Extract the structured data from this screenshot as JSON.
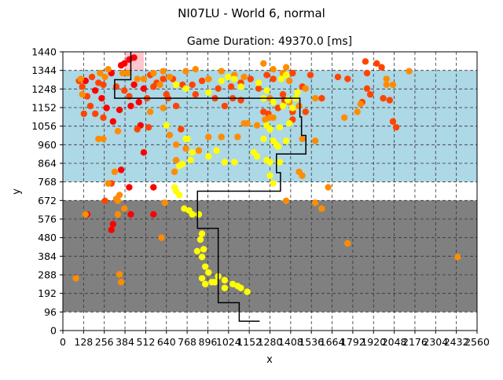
{
  "chart_data": {
    "type": "scatter",
    "suptitle": "NI07LU - World 6, normal",
    "title": "Game Duration: 49370.0 [ms]",
    "xlabel": "x",
    "ylabel": "y",
    "xlim": [
      0,
      2560
    ],
    "ylim": [
      0,
      1440
    ],
    "xticks": [
      0,
      128,
      256,
      384,
      512,
      640,
      768,
      896,
      1024,
      1152,
      1280,
      1408,
      1536,
      1664,
      1792,
      1920,
      2048,
      2176,
      2304,
      2432,
      2560
    ],
    "yticks": [
      0,
      96,
      192,
      288,
      384,
      480,
      576,
      672,
      768,
      864,
      960,
      1056,
      1152,
      1248,
      1344,
      1440
    ],
    "xtick_labels": [
      "0",
      "128",
      "256",
      "384",
      "512",
      "640",
      "768",
      "896",
      "1024",
      "1152",
      "1280",
      "1408",
      "1536",
      "1664",
      "1792",
      "1920",
      "2048",
      "2176",
      "2304",
      "2432",
      "2560"
    ],
    "ytick_labels": [
      "0",
      "96",
      "192",
      "288",
      "384",
      "480",
      "576",
      "672",
      "768",
      "864",
      "960",
      "1056",
      "1152",
      "1248",
      "1344",
      "1440"
    ],
    "grid": true,
    "regions": [
      {
        "name": "sky",
        "y_range": [
          768,
          1344
        ],
        "color": "#add8e6"
      },
      {
        "name": "ground",
        "y_range": [
          96,
          672
        ],
        "color": "#808080"
      }
    ],
    "colors": {
      "red": "#ff0000",
      "orange_red": "#ff4500",
      "orange": "#ff8c00",
      "yellow": "#ffff00",
      "path": "#000000",
      "highlight": "#ffb6c1"
    },
    "path": [
      [
        1216,
        48
      ],
      [
        1090,
        48
      ],
      [
        1090,
        144
      ],
      [
        960,
        144
      ],
      [
        960,
        528
      ],
      [
        832,
        528
      ],
      [
        832,
        720
      ],
      [
        1345,
        720
      ],
      [
        1345,
        816
      ],
      [
        1320,
        816
      ],
      [
        1320,
        912
      ],
      [
        1502,
        912
      ],
      [
        1502,
        1008
      ],
      [
        1475,
        1008
      ],
      [
        1475,
        1104
      ],
      [
        1465,
        1104
      ],
      [
        1465,
        1200
      ],
      [
        320,
        1200
      ],
      [
        320,
        1296
      ],
      [
        420,
        1296
      ],
      [
        420,
        1440
      ]
    ],
    "series": [
      {
        "color": "#ff0000",
        "points": [
          [
            410,
            1400
          ],
          [
            380,
            1380
          ],
          [
            440,
            1410
          ],
          [
            360,
            1370
          ],
          [
            300,
            1330
          ],
          [
            500,
            1250
          ],
          [
            470,
            1180
          ],
          [
            420,
            1160
          ],
          [
            350,
            1140
          ],
          [
            480,
            1060
          ],
          [
            310,
            1080
          ],
          [
            500,
            920
          ],
          [
            360,
            830
          ],
          [
            410,
            740
          ],
          [
            560,
            740
          ],
          [
            560,
            600
          ],
          [
            310,
            550
          ],
          [
            300,
            520
          ],
          [
            420,
            600
          ],
          [
            140,
            1290
          ],
          [
            200,
            1240
          ],
          [
            240,
            1200
          ],
          [
            270,
            1150
          ],
          [
            440,
            1270
          ],
          [
            150,
            600
          ]
        ]
      },
      {
        "color": "#ff4500",
        "points": [
          [
            100,
            1290
          ],
          [
            120,
            1260
          ],
          [
            180,
            1310
          ],
          [
            220,
            1280
          ],
          [
            150,
            1210
          ],
          [
            170,
            1160
          ],
          [
            130,
            1120
          ],
          [
            200,
            1120
          ],
          [
            250,
            1100
          ],
          [
            330,
            1260
          ],
          [
            380,
            1240
          ],
          [
            540,
            1320
          ],
          [
            580,
            1280
          ],
          [
            620,
            1300
          ],
          [
            680,
            1300
          ],
          [
            740,
            1270
          ],
          [
            800,
            1270
          ],
          [
            860,
            1290
          ],
          [
            960,
            1250
          ],
          [
            1040,
            1260
          ],
          [
            1100,
            1280
          ],
          [
            1160,
            1300
          ],
          [
            1210,
            1250
          ],
          [
            1260,
            1320
          ],
          [
            1300,
            1300
          ],
          [
            1420,
            1330
          ],
          [
            1480,
            1260
          ],
          [
            1530,
            1320
          ],
          [
            1600,
            1200
          ],
          [
            1700,
            1310
          ],
          [
            1760,
            1300
          ],
          [
            1880,
            1330
          ],
          [
            1940,
            1380
          ],
          [
            1970,
            1360
          ],
          [
            1880,
            1250
          ],
          [
            1850,
            1180
          ],
          [
            1900,
            1220
          ],
          [
            1980,
            1200
          ],
          [
            2020,
            1190
          ],
          [
            2040,
            1080
          ],
          [
            2060,
            1050
          ],
          [
            1870,
            1390
          ],
          [
            1500,
            1130
          ],
          [
            1420,
            1090
          ],
          [
            1270,
            1120
          ],
          [
            1240,
            1130
          ],
          [
            1330,
            1150
          ],
          [
            1370,
            1190
          ],
          [
            1360,
            1220
          ],
          [
            1420,
            1130
          ],
          [
            1100,
            1190
          ],
          [
            1050,
            1200
          ],
          [
            1000,
            1160
          ],
          [
            940,
            1200
          ],
          [
            820,
            1220
          ],
          [
            700,
            1160
          ],
          [
            730,
            1040
          ],
          [
            650,
            1200
          ],
          [
            640,
            1220
          ],
          [
            560,
            1260
          ],
          [
            520,
            1200
          ],
          [
            460,
            1040
          ],
          [
            530,
            1050
          ],
          [
            300,
            760
          ],
          [
            260,
            670
          ],
          [
            410,
            1210
          ],
          [
            250,
            1270
          ]
        ]
      },
      {
        "color": "#ff8c00",
        "points": [
          [
            80,
            270
          ],
          [
            140,
            600
          ],
          [
            360,
            250
          ],
          [
            350,
            290
          ],
          [
            380,
            630
          ],
          [
            280,
            760
          ],
          [
            320,
            820
          ],
          [
            330,
            680
          ],
          [
            340,
            600
          ],
          [
            340,
            670
          ],
          [
            350,
            700
          ],
          [
            610,
            480
          ],
          [
            630,
            660
          ],
          [
            690,
            820
          ],
          [
            700,
            880
          ],
          [
            700,
            960
          ],
          [
            760,
            940
          ],
          [
            840,
            930
          ],
          [
            900,
            1000
          ],
          [
            980,
            1000
          ],
          [
            1080,
            1000
          ],
          [
            1120,
            1070
          ],
          [
            1140,
            1070
          ],
          [
            1200,
            1060
          ],
          [
            1280,
            1100
          ],
          [
            1280,
            1200
          ],
          [
            1400,
            1180
          ],
          [
            1460,
            1160
          ],
          [
            1500,
            1250
          ],
          [
            1560,
            1200
          ],
          [
            1560,
            980
          ],
          [
            1480,
            800
          ],
          [
            1460,
            820
          ],
          [
            1380,
            670
          ],
          [
            1560,
            660
          ],
          [
            1600,
            630
          ],
          [
            1640,
            740
          ],
          [
            1760,
            450
          ],
          [
            1740,
            1100
          ],
          [
            1820,
            1130
          ],
          [
            1840,
            1170
          ],
          [
            2000,
            1270
          ],
          [
            2000,
            1300
          ],
          [
            2040,
            1270
          ],
          [
            2140,
            1340
          ],
          [
            1300,
            1350
          ],
          [
            1400,
            1290
          ],
          [
            1380,
            1360
          ],
          [
            1360,
            1330
          ],
          [
            1240,
            1380
          ],
          [
            1120,
            1310
          ],
          [
            1060,
            1320
          ],
          [
            980,
            1340
          ],
          [
            900,
            1300
          ],
          [
            820,
            1350
          ],
          [
            760,
            1340
          ],
          [
            660,
            1310
          ],
          [
            620,
            1340
          ],
          [
            600,
            1270
          ],
          [
            560,
            1330
          ],
          [
            500,
            1300
          ],
          [
            460,
            1300
          ],
          [
            400,
            1330
          ],
          [
            370,
            1330
          ],
          [
            280,
            1350
          ],
          [
            260,
            1310
          ],
          [
            230,
            1330
          ],
          [
            120,
            1220
          ],
          [
            110,
            1300
          ],
          [
            220,
            990
          ],
          [
            250,
            990
          ],
          [
            340,
            1030
          ],
          [
            540,
            1130
          ],
          [
            620,
            1150
          ],
          [
            660,
            1010
          ],
          [
            2440,
            380
          ],
          [
            1480,
            990
          ],
          [
            1300,
            1100
          ],
          [
            1250,
            1090
          ]
        ]
      },
      {
        "color": "#ffff00",
        "points": [
          [
            690,
            740
          ],
          [
            700,
            720
          ],
          [
            720,
            700
          ],
          [
            750,
            630
          ],
          [
            780,
            620
          ],
          [
            800,
            600
          ],
          [
            840,
            600
          ],
          [
            860,
            500
          ],
          [
            850,
            470
          ],
          [
            870,
            420
          ],
          [
            830,
            410
          ],
          [
            860,
            380
          ],
          [
            880,
            330
          ],
          [
            900,
            300
          ],
          [
            860,
            270
          ],
          [
            880,
            240
          ],
          [
            920,
            250
          ],
          [
            960,
            280
          ],
          [
            1000,
            260
          ],
          [
            1050,
            240
          ],
          [
            1080,
            230
          ],
          [
            1100,
            220
          ],
          [
            1140,
            200
          ],
          [
            1000,
            220
          ],
          [
            940,
            250
          ],
          [
            720,
            850
          ],
          [
            740,
            860
          ],
          [
            790,
            880
          ],
          [
            800,
            920
          ],
          [
            900,
            900
          ],
          [
            950,
            930
          ],
          [
            1000,
            870
          ],
          [
            1060,
            870
          ],
          [
            1180,
            920
          ],
          [
            1200,
            900
          ],
          [
            1260,
            880
          ],
          [
            1280,
            870
          ],
          [
            1340,
            870
          ],
          [
            1330,
            950
          ],
          [
            1380,
            980
          ],
          [
            1300,
            980
          ],
          [
            1240,
            990
          ],
          [
            1280,
            1040
          ],
          [
            1260,
            1060
          ],
          [
            1340,
            1050
          ],
          [
            1320,
            960
          ],
          [
            1400,
            1070
          ],
          [
            1390,
            1190
          ],
          [
            1350,
            1300
          ],
          [
            1380,
            1320
          ],
          [
            1450,
            1230
          ],
          [
            1440,
            1200
          ],
          [
            1420,
            1150
          ],
          [
            1360,
            1160
          ],
          [
            1300,
            1180
          ],
          [
            1240,
            1200
          ],
          [
            1260,
            1240
          ],
          [
            1210,
            1280
          ],
          [
            1300,
            760
          ],
          [
            1280,
            800
          ],
          [
            770,
            990
          ],
          [
            1020,
            1310
          ],
          [
            980,
            1290
          ],
          [
            1100,
            1260
          ],
          [
            1060,
            1300
          ],
          [
            900,
            1230
          ],
          [
            760,
            1250
          ],
          [
            700,
            1270
          ],
          [
            760,
            990
          ],
          [
            640,
            1060
          ]
        ]
      }
    ],
    "highlight_rect": {
      "x_range": [
        384,
        500
      ],
      "y_range": [
        1344,
        1440
      ]
    }
  }
}
